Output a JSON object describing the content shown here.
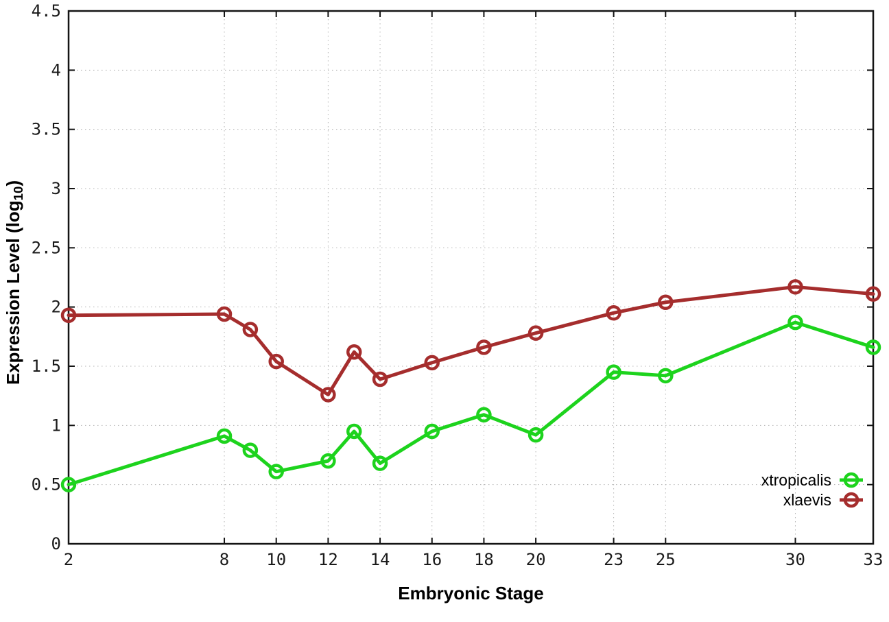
{
  "chart_data": {
    "type": "line",
    "title": "",
    "xlabel": "Embryonic Stage",
    "ylabel": "Expression Level (log10)",
    "ylabel_parts": {
      "main": "Expression Level (log",
      "sub": "10",
      "suffix": ")"
    },
    "xlim": [
      2,
      33
    ],
    "ylim": [
      0,
      4.5
    ],
    "x": [
      2,
      8,
      9,
      10,
      12,
      13,
      14,
      16,
      18,
      20,
      23,
      25,
      30,
      33
    ],
    "series": [
      {
        "name": "xtropicalis",
        "color": "#1dd31d",
        "marker": "open-circle",
        "values": [
          0.5,
          0.91,
          0.79,
          0.61,
          0.7,
          0.95,
          0.68,
          0.95,
          1.09,
          0.92,
          1.45,
          1.42,
          1.87,
          1.66
        ]
      },
      {
        "name": "xlaevis",
        "color": "#a52d2d",
        "marker": "open-circle",
        "values": [
          1.93,
          1.94,
          1.81,
          1.54,
          1.26,
          1.62,
          1.39,
          1.53,
          1.66,
          1.78,
          1.95,
          2.04,
          2.17,
          2.11
        ]
      }
    ],
    "xticks": [
      {
        "v": 2,
        "label": "2"
      },
      {
        "v": 8,
        "label": "8"
      },
      {
        "v": 10,
        "label": "10"
      },
      {
        "v": 12,
        "label": "12"
      },
      {
        "v": 14,
        "label": "14"
      },
      {
        "v": 16,
        "label": "16"
      },
      {
        "v": 18,
        "label": "18"
      },
      {
        "v": 20,
        "label": "20"
      },
      {
        "v": 23,
        "label": "23"
      },
      {
        "v": 25,
        "label": "25"
      },
      {
        "v": 30,
        "label": "30"
      },
      {
        "v": 33,
        "label": "33"
      }
    ],
    "yticks": [
      {
        "v": 0,
        "label": "0"
      },
      {
        "v": 0.5,
        "label": "0.5"
      },
      {
        "v": 1,
        "label": "1"
      },
      {
        "v": 1.5,
        "label": "1.5"
      },
      {
        "v": 2,
        "label": "2"
      },
      {
        "v": 2.5,
        "label": "2.5"
      },
      {
        "v": 3,
        "label": "3"
      },
      {
        "v": 3.5,
        "label": "3.5"
      },
      {
        "v": 4,
        "label": "4"
      },
      {
        "v": 4.5,
        "label": "4.5"
      }
    ],
    "grid": true,
    "legend": {
      "position": "inside-bottom-right",
      "entries": [
        "xtropicalis",
        "xlaevis"
      ]
    },
    "colors": {
      "axis": "#141414",
      "grid": "#b4b4b4",
      "tick_label": "#1a1a1a",
      "legend_text": "#000000",
      "background": "#ffffff"
    }
  }
}
